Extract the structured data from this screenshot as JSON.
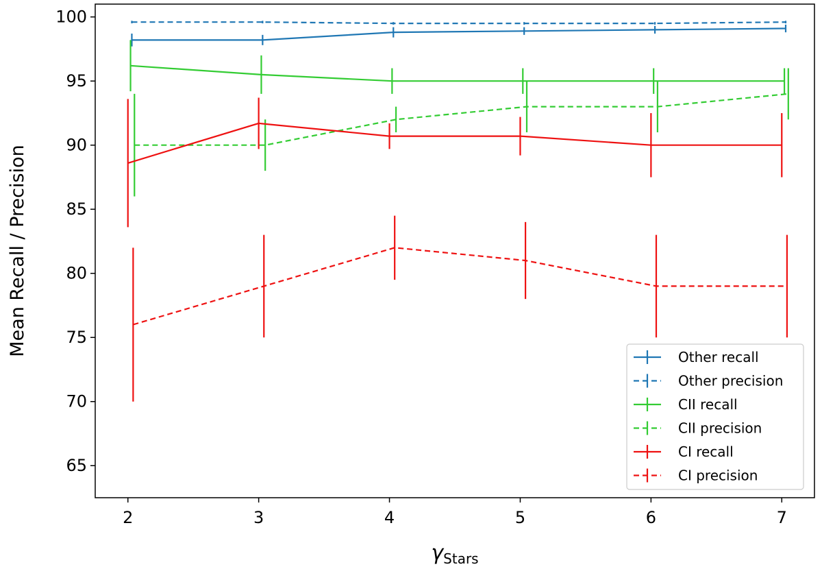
{
  "chart_data": {
    "type": "line",
    "title": "",
    "xlabel_symbol": "γ",
    "xlabel_subscript": "Stars",
    "ylabel": "Mean Recall / Precision",
    "xlim": [
      1.75,
      7.25
    ],
    "ylim": [
      62.5,
      101
    ],
    "xticks": [
      2,
      3,
      4,
      5,
      6,
      7
    ],
    "yticks": [
      65,
      70,
      75,
      80,
      85,
      90,
      95,
      100
    ],
    "grid": false,
    "legend_position": "lower-right",
    "series": [
      {
        "name": "Other recall",
        "color": "#1f77b4",
        "dash": false,
        "offset": 0.03,
        "x": [
          2,
          3,
          4,
          5,
          6,
          7
        ],
        "y": [
          98.2,
          98.2,
          98.8,
          98.9,
          99.0,
          99.1
        ],
        "err": [
          0.5,
          0.4,
          0.4,
          0.3,
          0.3,
          0.3
        ]
      },
      {
        "name": "Other precision",
        "color": "#1f77b4",
        "dash": true,
        "offset": 0.03,
        "x": [
          2,
          3,
          4,
          5,
          6,
          7
        ],
        "y": [
          99.6,
          99.6,
          99.5,
          99.5,
          99.5,
          99.6
        ],
        "err": [
          0.1,
          0.1,
          0.1,
          0.1,
          0.1,
          0.1
        ]
      },
      {
        "name": "CII recall",
        "color": "#33cc33",
        "dash": false,
        "offset": 0.02,
        "x": [
          2,
          3,
          4,
          5,
          6,
          7
        ],
        "y": [
          96.2,
          95.5,
          95.0,
          95.0,
          95.0,
          95.0
        ],
        "err": [
          2.0,
          1.5,
          1.0,
          1.0,
          1.0,
          1.0
        ]
      },
      {
        "name": "CII precision",
        "color": "#33cc33",
        "dash": true,
        "offset": 0.05,
        "x": [
          2,
          3,
          4,
          5,
          6,
          7
        ],
        "y": [
          90.0,
          90.0,
          92.0,
          93.0,
          93.0,
          94.0
        ],
        "err": [
          4.0,
          2.0,
          1.0,
          2.0,
          2.0,
          2.0
        ]
      },
      {
        "name": "CI recall",
        "color": "#ee1111",
        "dash": false,
        "offset": 0.0,
        "x": [
          2,
          3,
          4,
          5,
          6,
          7
        ],
        "y": [
          88.6,
          91.7,
          90.7,
          90.7,
          90.0,
          90.0
        ],
        "err": [
          5.0,
          2.0,
          1.0,
          1.5,
          2.5,
          2.5
        ]
      },
      {
        "name": "CI precision",
        "color": "#ee1111",
        "dash": true,
        "offset": 0.04,
        "x": [
          2,
          3,
          4,
          5,
          6,
          7
        ],
        "y": [
          76.0,
          79.0,
          82.0,
          81.0,
          79.0,
          79.0
        ],
        "err": [
          6.0,
          4.0,
          2.5,
          3.0,
          4.0,
          4.0
        ]
      }
    ]
  }
}
